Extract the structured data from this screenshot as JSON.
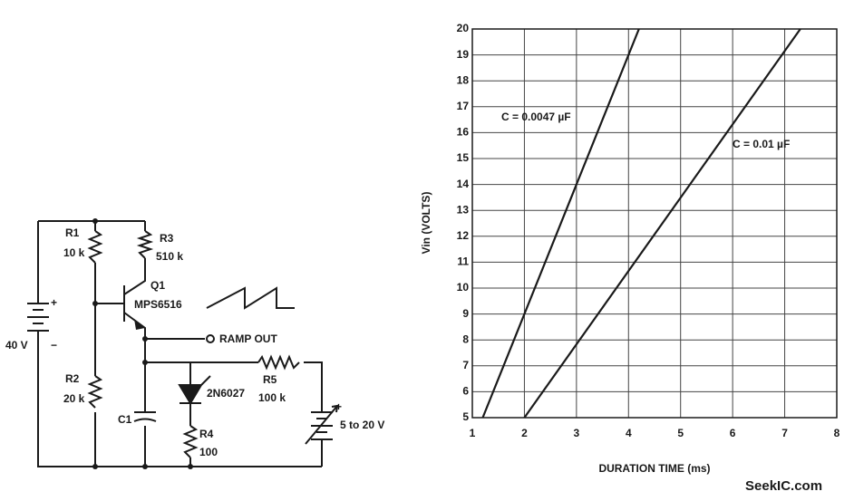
{
  "chart_data": {
    "type": "line",
    "x_label": "DURATION TIME (ms)",
    "y_label": "Vin (VOLTS)",
    "xlim": [
      1,
      8
    ],
    "ylim": [
      5,
      20
    ],
    "xticks": [
      1,
      2,
      3,
      4,
      5,
      6,
      7,
      8
    ],
    "yticks": [
      5,
      6,
      7,
      8,
      9,
      10,
      11,
      12,
      13,
      14,
      15,
      16,
      17,
      18,
      19,
      20
    ],
    "grid": true,
    "series": [
      {
        "name": "C = 0.0047 µF",
        "color": "#1a1a1a",
        "x": [
          1.2,
          4.2
        ],
        "values": [
          5,
          20
        ]
      },
      {
        "name": "C = 0.01 µF",
        "color": "#1a1a1a",
        "x": [
          2,
          7.3
        ],
        "values": [
          5,
          20
        ]
      }
    ]
  },
  "schematic": {
    "r1": "R1",
    "r1_value": "10 k",
    "r3": "R3",
    "r3_value": "510 k",
    "q1": "Q1",
    "q1_part": "MPS6516",
    "ramp_out": "RAMP OUT",
    "r2": "R2",
    "r2_value": "20 k",
    "put": "2N6027",
    "r5": "R5",
    "r5_value": "100 k",
    "c1": "C1",
    "r4": "R4",
    "r4_value": "100",
    "battery": "40 V",
    "battery_plus": "+",
    "battery_minus": "−",
    "supply_plus": "+",
    "supply": "5 to 20 V"
  },
  "watermark": "SeekIC.com"
}
